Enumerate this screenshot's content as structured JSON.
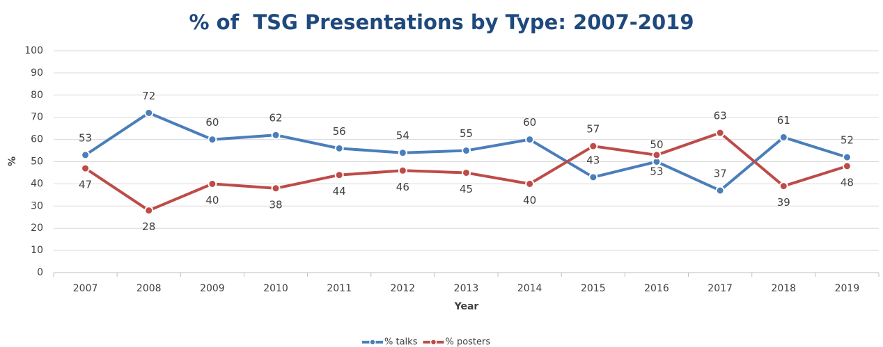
{
  "chart_data": {
    "type": "line",
    "title": "% of  TSG Presentations by Type: 2007-2019",
    "x_label": "Year",
    "y_label": "%",
    "categories": [
      "2007",
      "2008",
      "2009",
      "2010",
      "2011",
      "2012",
      "2013",
      "2014",
      "2015",
      "2016",
      "2017",
      "2018",
      "2019"
    ],
    "series": [
      {
        "name": "% talks",
        "color": "#4a7ebb",
        "values": [
          53,
          72,
          60,
          62,
          56,
          54,
          55,
          60,
          43,
          50,
          37,
          61,
          52
        ]
      },
      {
        "name": "% posters",
        "color": "#be4b48",
        "values": [
          47,
          28,
          40,
          38,
          44,
          46,
          45,
          40,
          57,
          53,
          63,
          39,
          48
        ]
      }
    ],
    "ylim": [
      0,
      100
    ],
    "yticks": [
      0,
      10,
      20,
      30,
      40,
      50,
      60,
      70,
      80,
      90,
      100
    ],
    "grid": true,
    "legend": "bottom"
  }
}
